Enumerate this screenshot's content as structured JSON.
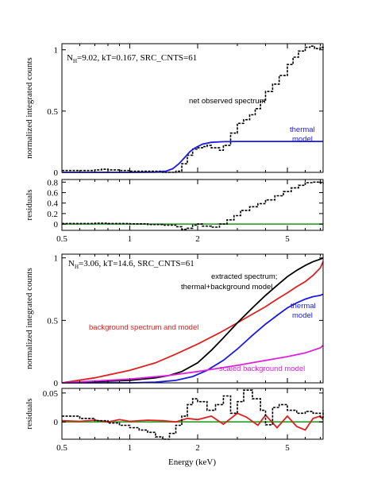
{
  "chart_data": [
    {
      "type": "line",
      "panel": "top",
      "ylabel": "normalized integrated counts",
      "xscale": "log",
      "xlim": [
        0.5,
        7.2
      ],
      "ylim": [
        0,
        1.05
      ],
      "yticks": [
        0,
        0.5,
        1
      ],
      "ytick_labels": [
        "0",
        "0.5",
        "1"
      ],
      "annotation_nh": "N",
      "annotation_nh_sub": "H",
      "annotation_rest": "=9.02, kT=0.167, SRC_CNTS=61",
      "labels": [
        {
          "text": "net observed spectrum",
          "color": "#000000"
        },
        {
          "text": "thermal",
          "color": "#1a1ae6"
        },
        {
          "text": "model",
          "color": "#1a1ae6"
        }
      ],
      "series": [
        {
          "color": "#000000",
          "style": "step",
          "x": [
            0.5,
            0.6,
            0.7,
            0.75,
            0.8,
            0.9,
            1.0,
            1.1,
            1.2,
            1.4,
            1.5,
            1.6,
            1.7,
            1.8,
            1.9,
            2.0,
            2.1,
            2.2,
            2.3,
            2.5,
            2.6,
            2.8,
            3.0,
            3.2,
            3.4,
            3.6,
            3.8,
            4.0,
            4.3,
            4.6,
            5.0,
            5.3,
            5.6,
            6.0,
            6.3,
            6.6,
            7.0,
            7.2
          ],
          "y": [
            0.015,
            0.015,
            0.02,
            0.025,
            0.02,
            0.015,
            0.01,
            0.01,
            0.01,
            0.0,
            0.0,
            0.01,
            0.07,
            0.14,
            0.19,
            0.2,
            0.21,
            0.22,
            0.2,
            0.18,
            0.22,
            0.32,
            0.4,
            0.43,
            0.47,
            0.52,
            0.58,
            0.66,
            0.72,
            0.79,
            0.88,
            0.94,
            0.99,
            1.02,
            1.03,
            1.01,
            1.02,
            1.0
          ]
        },
        {
          "color": "#1a1ae6",
          "style": "line",
          "x": [
            0.5,
            1.0,
            1.3,
            1.45,
            1.55,
            1.65,
            1.75,
            1.85,
            1.95,
            2.1,
            2.3,
            2.6,
            3.0,
            4.0,
            5.0,
            7.2
          ],
          "y": [
            0,
            0,
            0.002,
            0.01,
            0.03,
            0.07,
            0.12,
            0.17,
            0.2,
            0.23,
            0.245,
            0.25,
            0.252,
            0.252,
            0.252,
            0.252
          ]
        }
      ]
    },
    {
      "type": "line",
      "panel": "top-residuals",
      "ylabel": "residuals",
      "xscale": "log",
      "xlim": [
        0.5,
        7.2
      ],
      "ylim": [
        -0.12,
        0.85
      ],
      "yticks": [
        0,
        0.2,
        0.4,
        0.6,
        0.8
      ],
      "ytick_labels": [
        "0",
        "0.2",
        "0.4",
        "0.6",
        "0.8"
      ],
      "xticks": [
        0.5,
        1,
        2,
        5
      ],
      "xtick_labels": [
        "0.5",
        "1",
        "2",
        "5"
      ],
      "series": [
        {
          "color": "#3aa53a",
          "style": "line",
          "x": [
            0.5,
            7.2
          ],
          "y": [
            0,
            0
          ]
        },
        {
          "color": "#000000",
          "style": "step",
          "x": [
            0.5,
            0.7,
            0.8,
            1.0,
            1.2,
            1.4,
            1.6,
            1.7,
            1.8,
            1.9,
            2.0,
            2.1,
            2.3,
            2.5,
            2.7,
            2.9,
            3.1,
            3.4,
            3.7,
            4.0,
            4.4,
            4.8,
            5.2,
            5.6,
            6.0,
            6.5,
            7.0,
            7.2
          ],
          "y": [
            0.01,
            0.015,
            0.01,
            0.005,
            -0.01,
            -0.02,
            -0.05,
            -0.1,
            -0.08,
            -0.02,
            0.0,
            -0.04,
            -0.06,
            0.0,
            0.08,
            0.16,
            0.26,
            0.33,
            0.39,
            0.46,
            0.54,
            0.62,
            0.69,
            0.74,
            0.79,
            0.8,
            0.78,
            0.77
          ]
        }
      ]
    },
    {
      "type": "line",
      "panel": "bottom",
      "ylabel": "normalized integrated counts",
      "xscale": "log",
      "xlim": [
        0.5,
        7.2
      ],
      "ylim": [
        0,
        1.03
      ],
      "yticks": [
        0,
        0.5,
        1
      ],
      "ytick_labels": [
        "0",
        "0.5",
        "1"
      ],
      "annotation_nh": "N",
      "annotation_nh_sub": "H",
      "annotation_rest": "=3.06, kT=14.6, SRC_CNTS=61",
      "labels": [
        {
          "text": "extracted spectrum;",
          "color": "#000000"
        },
        {
          "text": "thermal+background model",
          "color": "#000000"
        },
        {
          "text": "thermal",
          "color": "#1a1ae6"
        },
        {
          "text": "model",
          "color": "#1a1ae6"
        },
        {
          "text": "background spectrum and model",
          "color": "#e02020"
        },
        {
          "text": "scaled background model",
          "color": "#e020e0"
        }
      ],
      "series": [
        {
          "color": "#e02020",
          "style": "line",
          "x": [
            0.5,
            0.7,
            1.0,
            1.3,
            1.6,
            2.0,
            2.5,
            3.0,
            3.5,
            4.0,
            4.5,
            5.0,
            5.5,
            6.0,
            6.5,
            7.0,
            7.2
          ],
          "y": [
            0.0,
            0.04,
            0.1,
            0.16,
            0.23,
            0.31,
            0.4,
            0.48,
            0.55,
            0.61,
            0.67,
            0.72,
            0.77,
            0.81,
            0.86,
            0.92,
            0.97
          ]
        },
        {
          "color": "#000000",
          "style": "line",
          "x": [
            0.5,
            1.0,
            1.3,
            1.5,
            1.7,
            2.0,
            2.3,
            2.6,
            3.0,
            3.5,
            4.0,
            4.5,
            5.0,
            5.5,
            6.0,
            6.5,
            7.0,
            7.2
          ],
          "y": [
            0.0,
            0.02,
            0.04,
            0.06,
            0.09,
            0.16,
            0.26,
            0.36,
            0.48,
            0.6,
            0.7,
            0.78,
            0.85,
            0.9,
            0.94,
            0.97,
            0.99,
            1.0
          ]
        },
        {
          "color": "#1a1ae6",
          "style": "line",
          "x": [
            0.5,
            1.0,
            1.3,
            1.6,
            1.9,
            2.2,
            2.6,
            3.0,
            3.5,
            4.0,
            4.5,
            5.0,
            5.5,
            6.0,
            6.5,
            7.0,
            7.2
          ],
          "y": [
            0.0,
            0.0,
            0.005,
            0.02,
            0.05,
            0.1,
            0.18,
            0.27,
            0.38,
            0.47,
            0.54,
            0.6,
            0.64,
            0.67,
            0.69,
            0.7,
            0.71
          ]
        },
        {
          "color": "#e020e0",
          "style": "line",
          "x": [
            0.5,
            1.0,
            1.5,
            2.0,
            3.0,
            4.0,
            5.0,
            6.0,
            7.0,
            7.2
          ],
          "y": [
            0.0,
            0.03,
            0.06,
            0.09,
            0.14,
            0.18,
            0.21,
            0.24,
            0.28,
            0.3
          ]
        }
      ]
    },
    {
      "type": "scatter",
      "panel": "bottom-residuals",
      "ylabel": "residuals",
      "xlabel": "Energy (keV)",
      "xscale": "log",
      "xlim": [
        0.5,
        7.2
      ],
      "ylim": [
        -0.03,
        0.058
      ],
      "yticks": [
        0,
        0.05
      ],
      "ytick_labels": [
        "0",
        "0.05"
      ],
      "xticks": [
        0.5,
        1,
        2,
        5
      ],
      "xtick_labels": [
        "0.5",
        "1",
        "2",
        "5"
      ],
      "series": [
        {
          "color": "#3aa53a",
          "style": "line",
          "x": [
            0.5,
            7.2
          ],
          "y": [
            0,
            0
          ]
        },
        {
          "color": "#e02020",
          "style": "line",
          "x": [
            0.5,
            0.6,
            0.7,
            0.8,
            0.9,
            1.0,
            1.2,
            1.4,
            1.6,
            1.8,
            2.0,
            2.3,
            2.6,
            3.0,
            3.3,
            3.7,
            4.0,
            4.5,
            5.0,
            5.5,
            6.0,
            6.5,
            7.0,
            7.2
          ],
          "y": [
            0.002,
            0.001,
            0.003,
            0.0,
            0.004,
            0.001,
            0.003,
            0.002,
            0.0,
            0.006,
            0.004,
            0.01,
            -0.004,
            0.015,
            0.008,
            -0.006,
            0.012,
            -0.01,
            0.01,
            -0.008,
            -0.014,
            0.006,
            0.01,
            0.004
          ]
        },
        {
          "color": "#000000",
          "style": "step",
          "x": [
            0.5,
            0.6,
            0.7,
            0.8,
            0.9,
            1.0,
            1.1,
            1.2,
            1.3,
            1.4,
            1.5,
            1.6,
            1.7,
            1.8,
            1.9,
            2.0,
            2.2,
            2.4,
            2.6,
            2.8,
            3.0,
            3.2,
            3.5,
            3.8,
            4.0,
            4.3,
            4.6,
            5.0,
            5.5,
            6.0,
            6.5,
            7.0,
            7.2
          ],
          "y": [
            0.01,
            0.006,
            0.002,
            -0.002,
            -0.006,
            -0.01,
            -0.014,
            -0.018,
            -0.026,
            -0.03,
            -0.02,
            -0.006,
            0.01,
            0.03,
            0.04,
            0.035,
            0.02,
            0.03,
            0.045,
            0.015,
            0.035,
            0.055,
            0.04,
            0.02,
            -0.005,
            0.025,
            0.03,
            0.02,
            0.015,
            0.018,
            0.015,
            0.008,
            0.02
          ]
        }
      ]
    }
  ]
}
